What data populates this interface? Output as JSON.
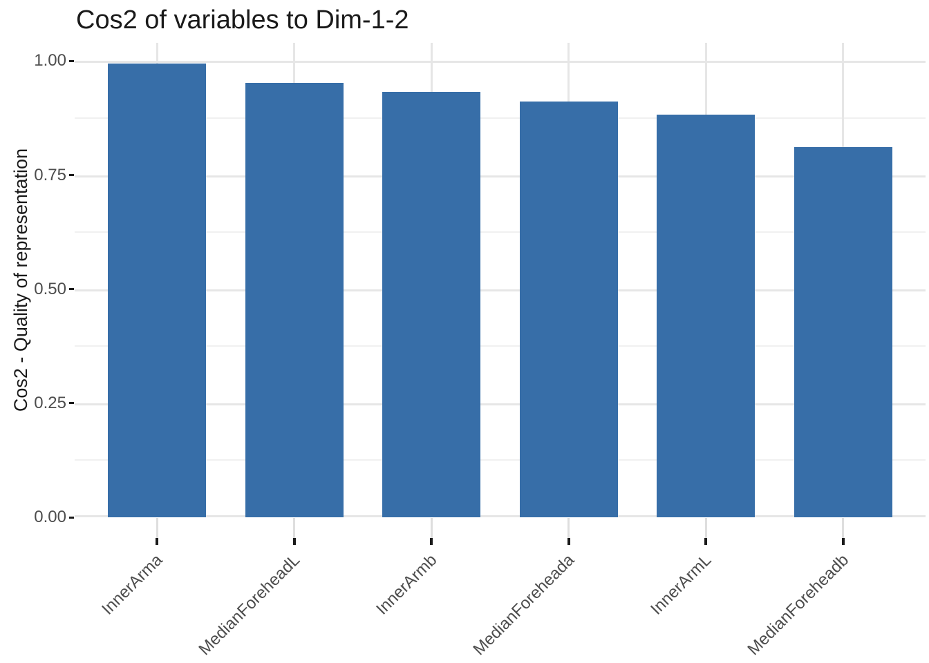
{
  "chart_data": {
    "type": "bar",
    "title": "Cos2 of variables to Dim-1-2",
    "ylabel": "Cos2 - Quality of representation",
    "xlabel": "",
    "categories": [
      "InnerArma",
      "MedianForeheadL",
      "InnerArmb",
      "MedianForeheada",
      "InnerArmL",
      "MedianForeheadb"
    ],
    "values": [
      0.994,
      0.952,
      0.933,
      0.911,
      0.882,
      0.812
    ],
    "ylim": [
      0,
      1.04
    ],
    "yticks": [
      0,
      0.25,
      0.5,
      0.75,
      1
    ],
    "ytick_labels": [
      "0.00",
      "0.25",
      "0.50",
      "0.75",
      "1.00"
    ],
    "minor_ticks": [
      0.125,
      0.375,
      0.625,
      0.875
    ],
    "grid": true,
    "legend": "none",
    "bar_color": "#376ea8"
  },
  "colors": {
    "bar_fill": "#376ea8",
    "grid_major": "#e6e6e6",
    "grid_minor": "#f0f0f0",
    "tick_stub": "#dedede",
    "axis_tick": "#1a1a1a",
    "axis_text": "#4d4d4d",
    "title_text": "#1a1a1a",
    "background": "#ffffff"
  }
}
